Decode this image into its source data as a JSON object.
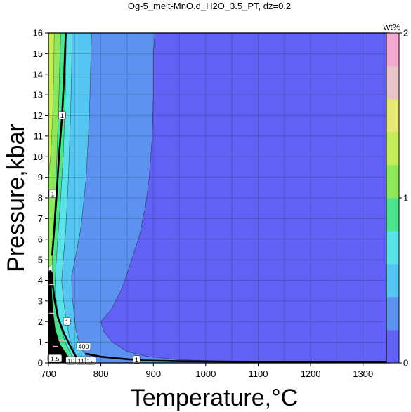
{
  "chart_data": {
    "type": "heatmap",
    "title": "Og-5_melt-MnO.d_H2O_3.5_PT, dz=0.2",
    "xlabel": "Temperature,°C",
    "ylabel": "Pressure,kbar",
    "xlim": [
      700,
      1350
    ],
    "ylim": [
      0,
      16
    ],
    "xticks": [
      700,
      800,
      900,
      1000,
      1100,
      1200,
      1300
    ],
    "yticks": [
      0,
      1,
      2,
      3,
      4,
      5,
      6,
      7,
      8,
      9,
      10,
      11,
      12,
      13,
      14,
      15,
      16
    ],
    "grid": true,
    "colorbar": {
      "label": "wt%",
      "range": [
        0,
        2
      ],
      "ticks": [
        0,
        1,
        2
      ],
      "step": 0.2,
      "colors": [
        "#6161f4",
        "#5d92f1",
        "#55c5f2",
        "#5ae3e9",
        "#4ee48f",
        "#8fe85b",
        "#c5ec5b",
        "#e5e874",
        "#e7c5c8",
        "#f4a9d0"
      ]
    },
    "regions": [
      {
        "level": "0-0.2",
        "color": "#6161f4",
        "boundary": [
          [
            1350,
            0
          ],
          [
            1350,
            16
          ],
          [
            903,
            16
          ],
          [
            900,
            15
          ],
          [
            900,
            13
          ],
          [
            898,
            11
          ],
          [
            892,
            9
          ],
          [
            885,
            7.6
          ],
          [
            880,
            7
          ],
          [
            874,
            6.2
          ],
          [
            866,
            5.6
          ],
          [
            856,
            4.8
          ],
          [
            840,
            3.6
          ],
          [
            820,
            2.6
          ],
          [
            800,
            2.0
          ],
          [
            806,
            1.5
          ],
          [
            822,
            1.0
          ],
          [
            850,
            0.55
          ],
          [
            890,
            0.3
          ],
          [
            950,
            0.15
          ],
          [
            1050,
            0.06
          ],
          [
            1350,
            0
          ]
        ]
      },
      {
        "level": "0.2-0.4",
        "color": "#5d92f1",
        "boundary": [
          [
            903,
            16
          ],
          [
            900,
            15
          ],
          [
            900,
            13
          ],
          [
            898,
            11
          ],
          [
            892,
            9
          ],
          [
            885,
            7.6
          ],
          [
            880,
            7
          ],
          [
            874,
            6.2
          ],
          [
            866,
            5.6
          ],
          [
            856,
            4.8
          ],
          [
            840,
            3.6
          ],
          [
            820,
            2.6
          ],
          [
            800,
            2.0
          ],
          [
            806,
            1.5
          ],
          [
            822,
            1.0
          ],
          [
            850,
            0.55
          ],
          [
            890,
            0.3
          ],
          [
            950,
            0.15
          ],
          [
            1050,
            0.06
          ],
          [
            1350,
            0
          ],
          [
            780,
            0
          ],
          [
            770,
            0.4
          ],
          [
            760,
            0.8
          ],
          [
            752,
            1.6
          ],
          [
            748,
            2.6
          ],
          [
            745,
            3.2
          ],
          [
            744,
            4.2
          ],
          [
            752,
            5.2
          ],
          [
            762,
            6.6
          ],
          [
            772,
            9
          ],
          [
            778,
            12
          ],
          [
            780,
            14
          ],
          [
            782,
            16
          ]
        ]
      },
      {
        "level": "0.4-0.6",
        "color": "#55c5f2",
        "boundary": [
          [
            782,
            16
          ],
          [
            780,
            14
          ],
          [
            778,
            12
          ],
          [
            772,
            9
          ],
          [
            762,
            6.6
          ],
          [
            752,
            5.2
          ],
          [
            744,
            4.2
          ],
          [
            745,
            3.2
          ],
          [
            748,
            2.6
          ],
          [
            752,
            1.6
          ],
          [
            760,
            0.8
          ],
          [
            770,
            0.4
          ],
          [
            780,
            0
          ],
          [
            760,
            0
          ],
          [
            750,
            0.5
          ],
          [
            740,
            1.2
          ],
          [
            733,
            2.2
          ],
          [
            728,
            3.2
          ],
          [
            725,
            4.0
          ],
          [
            728,
            5.0
          ],
          [
            733,
            6.5
          ],
          [
            738,
            9
          ],
          [
            742,
            12
          ],
          [
            744,
            14
          ],
          [
            745,
            16
          ]
        ]
      },
      {
        "level": "0.6-0.8",
        "color": "#5ae3e9",
        "boundary": [
          [
            745,
            16
          ],
          [
            744,
            14
          ],
          [
            742,
            12
          ],
          [
            738,
            9
          ],
          [
            733,
            6.5
          ],
          [
            728,
            5.0
          ],
          [
            725,
            4.0
          ],
          [
            728,
            3.2
          ],
          [
            733,
            2.2
          ],
          [
            740,
            1.2
          ],
          [
            750,
            0.5
          ],
          [
            760,
            0
          ],
          [
            752,
            0
          ],
          [
            742,
            0.45
          ],
          [
            732,
            1.0
          ],
          [
            722,
            1.8
          ],
          [
            716,
            2.8
          ],
          [
            712,
            3.6
          ],
          [
            714,
            4.6
          ],
          [
            717,
            5.8
          ],
          [
            722,
            7.5
          ],
          [
            728,
            10
          ],
          [
            732,
            13
          ],
          [
            734,
            16
          ]
        ]
      },
      {
        "level": "0.8-1.0",
        "color": "#4ee48f",
        "boundary": [
          [
            734,
            16
          ],
          [
            732,
            13
          ],
          [
            728,
            10
          ],
          [
            722,
            7.5
          ],
          [
            717,
            5.8
          ],
          [
            714,
            4.6
          ],
          [
            712,
            3.6
          ],
          [
            716,
            2.8
          ],
          [
            722,
            1.8
          ],
          [
            732,
            1.0
          ],
          [
            742,
            0.45
          ],
          [
            752,
            0
          ],
          [
            745,
            0
          ],
          [
            735,
            0.4
          ],
          [
            722,
            0.9
          ],
          [
            713,
            1.6
          ],
          [
            708,
            2.6
          ],
          [
            706,
            3.6
          ],
          [
            707,
            4.8
          ],
          [
            709,
            6.0
          ],
          [
            712,
            7.5
          ],
          [
            716,
            10
          ],
          [
            720,
            13
          ],
          [
            723,
            16
          ]
        ]
      },
      {
        "level": "1.0-1.2",
        "color": "#8fe85b",
        "boundary": [
          [
            723,
            16
          ],
          [
            720,
            13
          ],
          [
            716,
            10
          ],
          [
            712,
            7.5
          ],
          [
            709,
            6.0
          ],
          [
            707,
            4.8
          ],
          [
            700,
            4.6
          ],
          [
            700,
            16
          ]
        ]
      },
      {
        "level": "1.2-1.4",
        "color": "#c5ec5b",
        "boundary": [
          [
            700,
            16
          ],
          [
            700,
            9
          ],
          [
            704,
            10
          ],
          [
            708,
            12
          ],
          [
            710,
            14
          ],
          [
            711,
            16
          ]
        ]
      },
      {
        "level": ">2",
        "color": "#000000",
        "boundary": [
          [
            700,
            0
          ],
          [
            745,
            0
          ],
          [
            735,
            0.4
          ],
          [
            722,
            0.9
          ],
          [
            713,
            1.6
          ],
          [
            708,
            2.6
          ],
          [
            706,
            3.6
          ],
          [
            707,
            4.4
          ],
          [
            703,
            4.5
          ],
          [
            700,
            4.4
          ]
        ]
      }
    ],
    "contour_lines": [
      {
        "level": "1",
        "points": [
          [
            733,
            16
          ],
          [
            730,
            14
          ],
          [
            726,
            12
          ],
          [
            720,
            10
          ],
          [
            715,
            8
          ],
          [
            711,
            6.5
          ],
          [
            707,
            5.2
          ]
        ]
      },
      {
        "level": "1",
        "points": [
          [
            760,
            0
          ],
          [
            752,
            0.3
          ],
          [
            742,
            0.8
          ],
          [
            730,
            1.4
          ],
          [
            718,
            2.2
          ],
          [
            712,
            3.0
          ],
          [
            708,
            3.8
          ],
          [
            706,
            4.4
          ]
        ]
      },
      {
        "level": "1",
        "points": [
          [
            1350,
            0.04
          ],
          [
            1100,
            0.05
          ],
          [
            950,
            0.08
          ],
          [
            880,
            0.12
          ],
          [
            840,
            0.2
          ],
          [
            800,
            0.3
          ],
          [
            770,
            0.45
          ]
        ]
      }
    ],
    "contour_labels": [
      {
        "text": "1",
        "x": 726,
        "y": 12.0
      },
      {
        "text": "1",
        "x": 708,
        "y": 8.2
      },
      {
        "text": "1",
        "x": 735,
        "y": 2.0
      },
      {
        "text": "1",
        "x": 868,
        "y": 0.15
      },
      {
        "text": "1.5",
        "x": 712,
        "y": 0.2
      },
      {
        "text": "10",
        "x": 743,
        "y": 0.1
      },
      {
        "text": "11",
        "x": 762,
        "y": 0.1
      },
      {
        "text": "12",
        "x": 780,
        "y": 0.1
      },
      {
        "text": "400",
        "x": 767,
        "y": 0.8
      }
    ]
  }
}
